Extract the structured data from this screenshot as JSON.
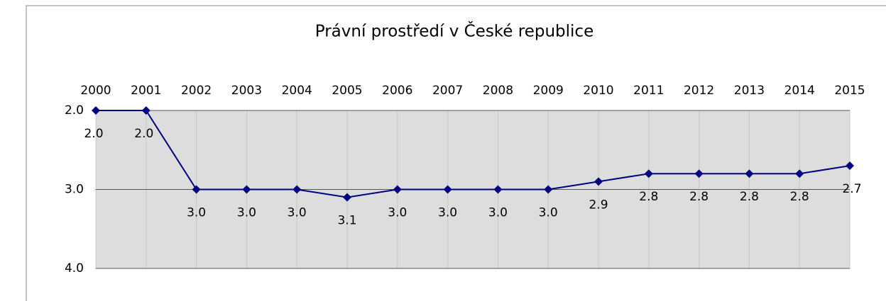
{
  "chart_data": {
    "type": "line",
    "title": "Právní prostředí v České republice",
    "categories": [
      "2000",
      "2001",
      "2002",
      "2003",
      "2004",
      "2005",
      "2006",
      "2007",
      "2008",
      "2009",
      "2010",
      "2011",
      "2012",
      "2013",
      "2014",
      "2015"
    ],
    "series": [
      {
        "name": "Právní prostředí",
        "color": "#000080",
        "values": [
          2,
          2,
          3,
          3,
          3,
          3.1,
          3,
          3,
          3,
          3,
          2.9,
          2.8,
          2.8,
          2.8,
          2.8,
          2.7
        ],
        "value_labels": [
          "2.0",
          "2.0",
          "3.0",
          "3.0",
          "3.0",
          "3.1",
          "3.0",
          "3.0",
          "3.0",
          "3.0",
          "2.9",
          "2.8",
          "2.8",
          "2.8",
          "2.8",
          "2.7"
        ]
      }
    ],
    "ylim": [
      2,
      4
    ],
    "yticks": [
      {
        "value": 2,
        "label": "2.0"
      },
      {
        "value": 3,
        "label": "3.0"
      },
      {
        "value": 4,
        "label": "4.0"
      }
    ],
    "y_inverted": true,
    "grid": true,
    "plot_color": "#dddddd"
  }
}
